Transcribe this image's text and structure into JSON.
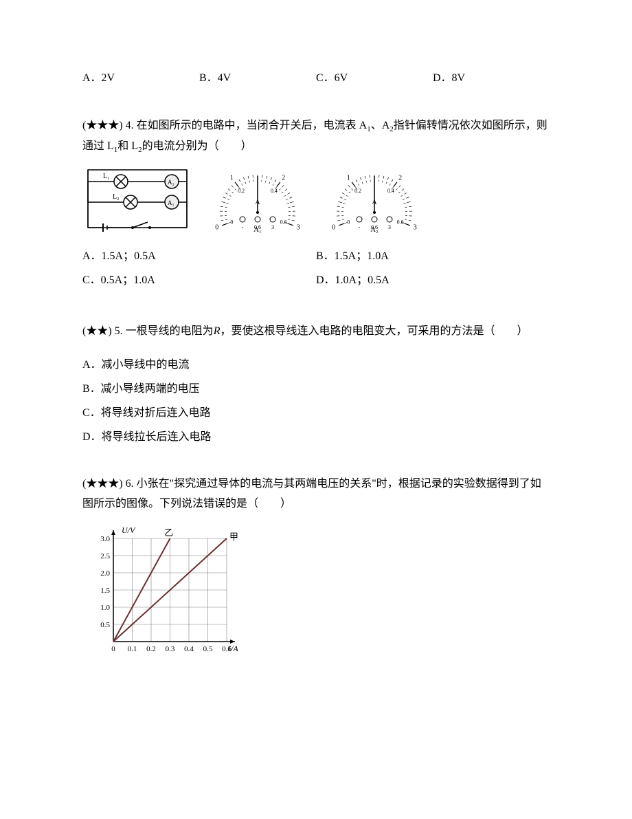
{
  "q3options": {
    "a": "A．2V",
    "b": "B．4V",
    "c": "C．6V",
    "d": "D．8V"
  },
  "q4": {
    "stars": "(★★★) 4.",
    "text1": " 在如图所示的电路中，当闭合开关后，电流表 A",
    "sub1": "1",
    "text2": "、A",
    "sub2": "2",
    "text3": "指针偏转情况依次如图所示，则通过 L",
    "sub3": "1",
    "text4": "和 L",
    "sub4": "2",
    "text5": "的电流分别为（　　）",
    "options": {
      "a": "A．1.5A；0.5A",
      "b": "B．1.5A；1.0A",
      "c": "C．0.5A；1.0A",
      "d": "D．1.0A；0.5A"
    },
    "meter": {
      "label_a1": "A₁",
      "label_a2": "A₂",
      "scale_top": [
        "0",
        "0.2",
        "0.4",
        "0.6"
      ],
      "scale_big": [
        "0",
        "1",
        "2",
        "3"
      ],
      "A": "A",
      "minus": "-",
      "circles_labels": [
        "0.6",
        "3"
      ],
      "needle1_angle": 90,
      "needle2_angle": 90
    },
    "circuit": {
      "L1": "L₁",
      "L2": "L₂",
      "A1": "A₁",
      "A2": "A₂"
    }
  },
  "q5": {
    "stars": "(★★) 5.",
    "text1": " 一根导线的电阻为",
    "R": "R",
    "text2": "，要使这根导线连入电路的电阻变大，可采用的方法是（　　）",
    "options": {
      "a": "A．减小导线中的电流",
      "b": "B．减小导线两端的电压",
      "c": "C．将导线对折后连入电路",
      "d": "D．将导线拉长后连入电路"
    }
  },
  "q6": {
    "stars": "(★★★) 6.",
    "text": " 小张在\"探究通过导体的电流与其两端电压的关系\"时，根据记录的实验数据得到了如图所示的图像。下列说法错误的是（　　）",
    "chart": {
      "ylabel": "U/V",
      "xlabel": "I/A",
      "yi_label": "乙",
      "jia_label": "甲",
      "y_ticks": [
        "0.5",
        "1.0",
        "1.5",
        "2.0",
        "2.5",
        "3.0"
      ],
      "x_ticks": [
        "0",
        "0.1",
        "0.2",
        "0.3",
        "0.4",
        "0.5",
        "0.6"
      ],
      "line_yi": {
        "x1": 0,
        "y1": 0,
        "x2": 0.3,
        "y2": 3.0
      },
      "line_jia": {
        "x1": 0,
        "y1": 0,
        "x2": 0.6,
        "y2": 3.0
      },
      "axis_color": "#000000",
      "grid_color": "#808080",
      "line_color": "#6b3030"
    }
  }
}
